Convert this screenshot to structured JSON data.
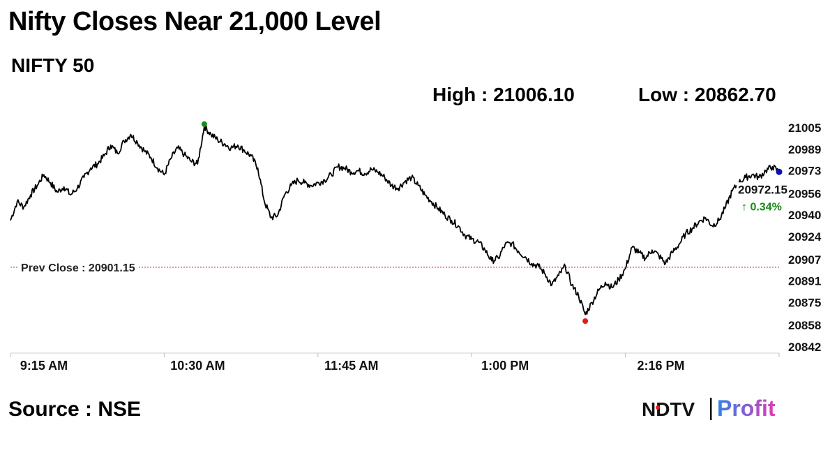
{
  "header": {
    "title": "Nifty Closes Near 21,000 Level",
    "subtitle": "NIFTY 50",
    "high_text": "High : 21006.10",
    "low_text": "Low : 20862.70"
  },
  "footer": {
    "source": "Source : NSE",
    "logo_left": "NDTV",
    "logo_right": "Profit"
  },
  "colors": {
    "line": "#000000",
    "high_marker": "#1a8a1a",
    "low_marker": "#e11d1d",
    "last_marker": "#0a10b4",
    "prev_close_line": "#c0392b",
    "change_up": "#1a8a1a",
    "logo_red": "#e11d1d",
    "logo_profit_start": "#2f80ed",
    "logo_profit_end": "#e33bb5"
  },
  "chart_data": {
    "type": "line",
    "series": [
      {
        "values": [
          20936,
          20950,
          20946,
          20955,
          20962,
          20970,
          20964,
          20957,
          20961,
          20955,
          20960,
          20968,
          20975,
          20978,
          20984,
          20992,
          20986,
          20995,
          21000,
          20994,
          20988,
          20983,
          20975,
          20970,
          20982,
          20990,
          20985,
          20980,
          20978,
          21006,
          21000,
          20996,
          20993,
          20990,
          20992,
          20988,
          20984,
          20975,
          20950,
          20938,
          20940,
          20955,
          20962,
          20966,
          20964,
          20962,
          20964,
          20966,
          20970,
          20976,
          20975,
          20972,
          20973,
          20971,
          20974,
          20972,
          20968,
          20962,
          20960,
          20965,
          20968,
          20962,
          20955,
          20950,
          20945,
          20940,
          20936,
          20932,
          20925,
          20922,
          20920,
          20914,
          20906,
          20908,
          20918,
          20919,
          20913,
          20909,
          20904,
          20902,
          20896,
          20888,
          20895,
          20902,
          20888,
          20880,
          20866,
          20875,
          20884,
          20890,
          20886,
          20892,
          20900,
          20916,
          20912,
          20908,
          20914,
          20910,
          20904,
          20912,
          20918,
          20926,
          20930,
          20935,
          20938,
          20932,
          20936,
          20946,
          20958,
          20964,
          20968,
          20970,
          20968,
          20973,
          20976,
          20972.15
        ],
        "color": "#000000"
      }
    ],
    "x_range": [
      "09:15",
      "15:30"
    ],
    "x_ticks": [
      "9:15 AM",
      "10:30 AM",
      "11:45 AM",
      "1:00 PM",
      "2:16 PM"
    ],
    "y_ticks": [
      21005,
      20989,
      20973,
      20956,
      20940,
      20924,
      20907,
      20891,
      20875,
      20858,
      20842
    ],
    "ylim": [
      20842,
      21005
    ],
    "grid": false,
    "y_axis_side": "right",
    "prev_close": {
      "label": "Prev Close : 20901.15",
      "value": 20901.15
    },
    "high": {
      "value": 21006.1
    },
    "low": {
      "value": 20862.7
    },
    "last": {
      "value": "20972.15",
      "change": "↑ 0.34%"
    }
  }
}
